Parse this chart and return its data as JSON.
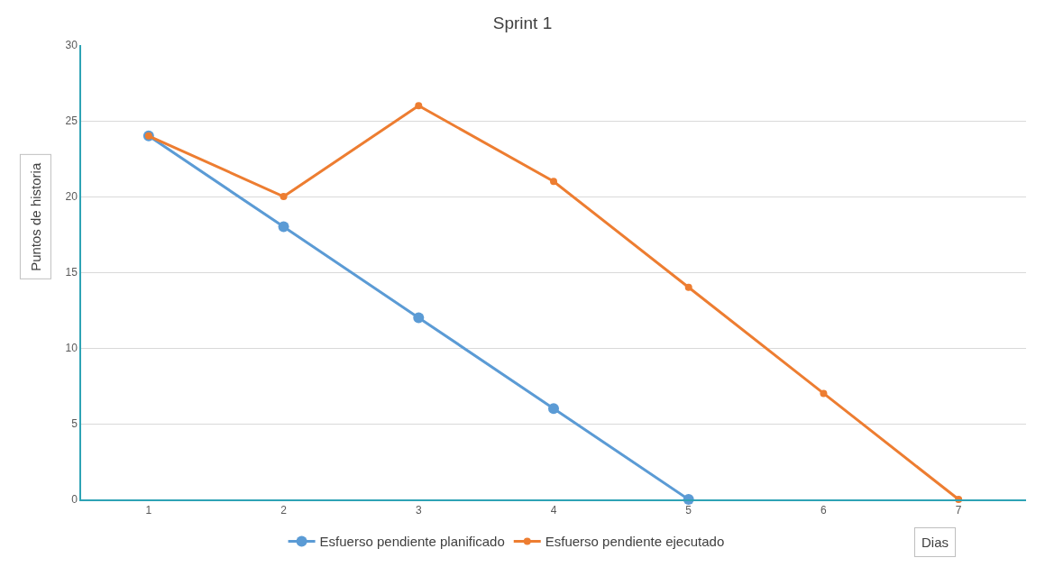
{
  "chart_data": {
    "type": "line",
    "title": "Sprint 1",
    "xlabel": "Dias",
    "ylabel": "Puntos de historia",
    "categories": [
      "1",
      "2",
      "3",
      "4",
      "5",
      "6",
      "7"
    ],
    "series": [
      {
        "name": "Esfuerso pendiente planificado",
        "color": "#5b9bd5",
        "values": [
          24,
          18,
          12,
          6,
          0,
          null,
          null
        ]
      },
      {
        "name": "Esfuerso pendiente ejecutado",
        "color": "#ed7d31",
        "values": [
          24,
          20,
          26,
          21,
          14,
          7,
          0
        ]
      }
    ],
    "ylim": [
      0,
      30
    ],
    "yticks": [
      0,
      5,
      10,
      15,
      20,
      25,
      30
    ],
    "grid": "y",
    "legend": "bottom",
    "marker": "circle",
    "line_style": "solid"
  }
}
